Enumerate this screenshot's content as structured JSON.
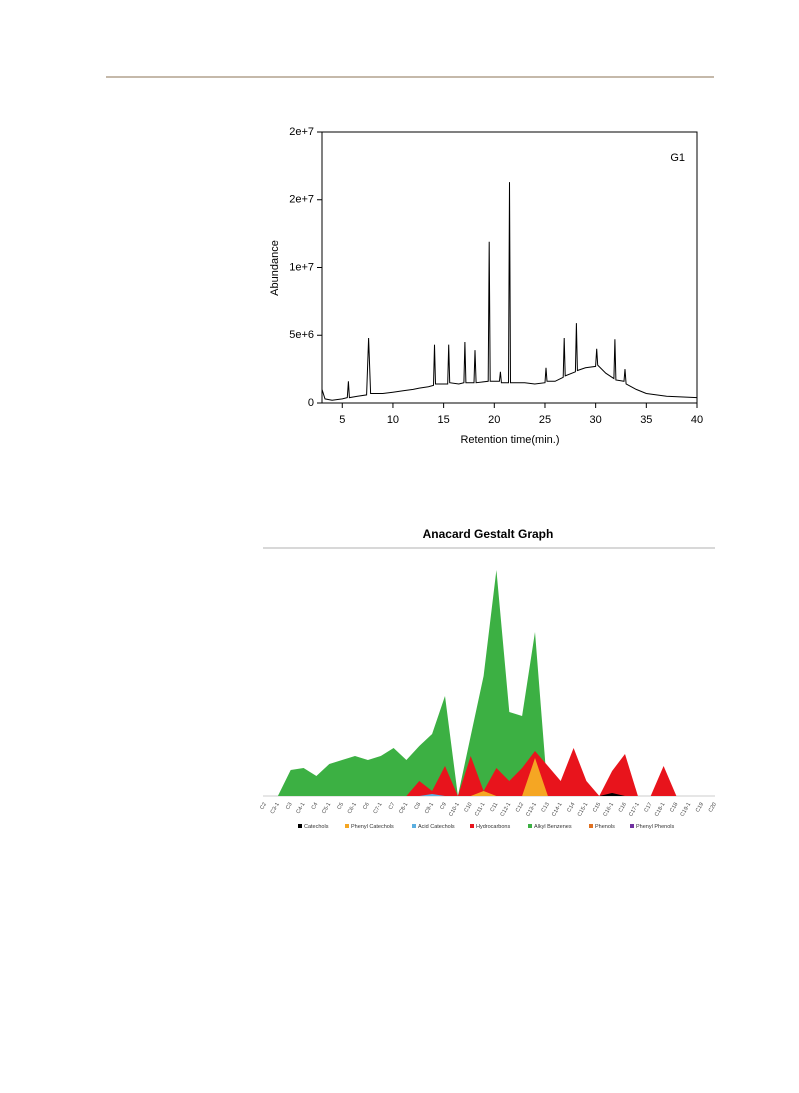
{
  "chart_data": [
    {
      "type": "line",
      "annotation": "G1",
      "x_label": "Retention time(min.)",
      "y_label": "Abundance",
      "color": "#000000",
      "x": [
        3.0,
        3.3,
        4,
        5,
        5.5,
        5.6,
        5.7,
        6.5,
        7.4,
        7.6,
        7.8,
        9,
        10,
        11,
        12,
        12.6,
        13.5,
        14,
        14.1,
        14.2,
        15.4,
        15.5,
        15.6,
        16.5,
        17,
        17.1,
        17.2,
        18,
        18.1,
        18.2,
        19.4,
        19.5,
        19.6,
        20.5,
        20.6,
        20.7,
        21.4,
        21.5,
        21.6,
        23,
        24,
        25,
        25.1,
        25.2,
        26,
        26.8,
        26.9,
        27,
        28,
        28.1,
        28.2,
        29,
        30,
        30.1,
        30.2,
        31,
        31.8,
        31.9,
        32,
        32.8,
        32.9,
        33,
        34,
        35,
        37,
        40
      ],
      "values": [
        1000000,
        300000,
        200000,
        300000,
        400000,
        1600000,
        400000,
        500000,
        600000,
        4800000,
        700000,
        700000,
        800000,
        900000,
        1000000,
        1100000,
        1200000,
        1300000,
        4300000,
        1400000,
        1400000,
        4300000,
        1500000,
        1400000,
        1500000,
        4500000,
        1500000,
        1500000,
        3900000,
        1500000,
        1600000,
        11900000,
        1600000,
        1600000,
        2300000,
        1500000,
        1500000,
        16300000,
        1500000,
        1500000,
        1400000,
        1500000,
        2600000,
        1600000,
        1600000,
        1900000,
        4800000,
        2000000,
        2300000,
        5900000,
        2400000,
        2600000,
        2700000,
        4000000,
        2800000,
        2200000,
        1800000,
        4700000,
        1700000,
        1600000,
        2500000,
        1400000,
        1000000,
        700000,
        500000,
        400000
      ],
      "xlim": [
        3,
        40
      ],
      "xticks": [
        5,
        10,
        15,
        20,
        25,
        30,
        35,
        40
      ],
      "ylim": [
        0,
        20000000
      ],
      "yticks": [
        0,
        {
          "value": 5000000,
          "label": "5e+6"
        },
        {
          "value": 10000000,
          "label": "1e+7"
        },
        {
          "value": 15000000,
          "label": "2e+7"
        },
        {
          "value": 20000000,
          "label": "2e+7"
        }
      ]
    },
    {
      "type": "area",
      "title": "Anacard Gestalt Graph",
      "legend": "bottom",
      "ylim": [
        0,
        240
      ],
      "categories": [
        "C2",
        "C3-1",
        "C3",
        "C4-1",
        "C4",
        "C5-1",
        "C5",
        "C6-1",
        "C6",
        "C7-1",
        "C7",
        "C8-1",
        "C8",
        "C9-1",
        "C9",
        "C10-1",
        "C10",
        "C11-1",
        "C11",
        "C12-1",
        "C12",
        "C13-1",
        "C13",
        "C14-1",
        "C14",
        "C15-1",
        "C15",
        "C16-1",
        "C16",
        "C17-1",
        "C17",
        "C18-1",
        "C18",
        "C19-1",
        "C19",
        "C20"
      ],
      "series": [
        {
          "name": "Catechols",
          "color": "#000000",
          "values": [
            0,
            0,
            0,
            0,
            0,
            0,
            0,
            0,
            0,
            0,
            0,
            0,
            0,
            0,
            0,
            0,
            0,
            0,
            0,
            0,
            0,
            0,
            0,
            0,
            0,
            0,
            0,
            3,
            0,
            0,
            0,
            0,
            0,
            0,
            0,
            0
          ]
        },
        {
          "name": "Phenyl Catechols",
          "color": "#f5a623",
          "values": [
            0,
            0,
            0,
            0,
            0,
            0,
            0,
            0,
            0,
            0,
            0,
            0,
            0,
            0,
            0,
            0,
            0,
            5,
            0,
            0,
            0,
            38,
            0,
            0,
            0,
            0,
            0,
            0,
            0,
            0,
            0,
            0,
            0,
            0,
            0,
            0
          ]
        },
        {
          "name": "Acid Catechols",
          "color": "#5aaee0",
          "values": [
            0,
            0,
            0,
            0,
            0,
            0,
            0,
            0,
            0,
            0,
            0,
            0,
            0,
            2,
            0,
            0,
            0,
            0,
            0,
            0,
            0,
            0,
            0,
            0,
            0,
            0,
            0,
            0,
            0,
            0,
            0,
            0,
            0,
            0,
            0,
            0
          ]
        },
        {
          "name": "Hydrocarbons",
          "color": "#e8141c",
          "values": [
            0,
            0,
            0,
            0,
            0,
            0,
            0,
            0,
            0,
            0,
            0,
            0,
            15,
            5,
            30,
            0,
            40,
            5,
            28,
            15,
            28,
            45,
            30,
            15,
            48,
            15,
            0,
            25,
            42,
            0,
            0,
            30,
            0,
            0,
            0,
            0
          ]
        },
        {
          "name": "Alkyl Benzenes",
          "color": "#3cb043",
          "values": [
            0,
            0,
            26,
            28,
            20,
            32,
            36,
            40,
            36,
            40,
            48,
            36,
            50,
            62,
            100,
            0,
            60,
            120,
            226,
            84,
            80,
            164,
            0,
            0,
            0,
            0,
            0,
            0,
            0,
            0,
            0,
            0,
            0,
            0,
            0,
            0
          ]
        },
        {
          "name": "Phenols",
          "color": "#e07020",
          "values": [
            0,
            0,
            0,
            0,
            0,
            0,
            0,
            0,
            0,
            0,
            0,
            0,
            0,
            0,
            0,
            0,
            0,
            0,
            0,
            0,
            0,
            0,
            0,
            0,
            0,
            0,
            0,
            0,
            0,
            0,
            0,
            0,
            0,
            0,
            0,
            0
          ]
        },
        {
          "name": "Phenyl Phenols",
          "color": "#7030a0",
          "values": [
            0,
            0,
            0,
            0,
            0,
            0,
            0,
            0,
            0,
            0,
            0,
            0,
            0,
            0,
            0,
            0,
            0,
            0,
            0,
            0,
            0,
            0,
            0,
            0,
            0,
            0,
            0,
            0,
            0,
            0,
            0,
            0,
            0,
            0,
            0,
            0
          ]
        }
      ]
    }
  ]
}
